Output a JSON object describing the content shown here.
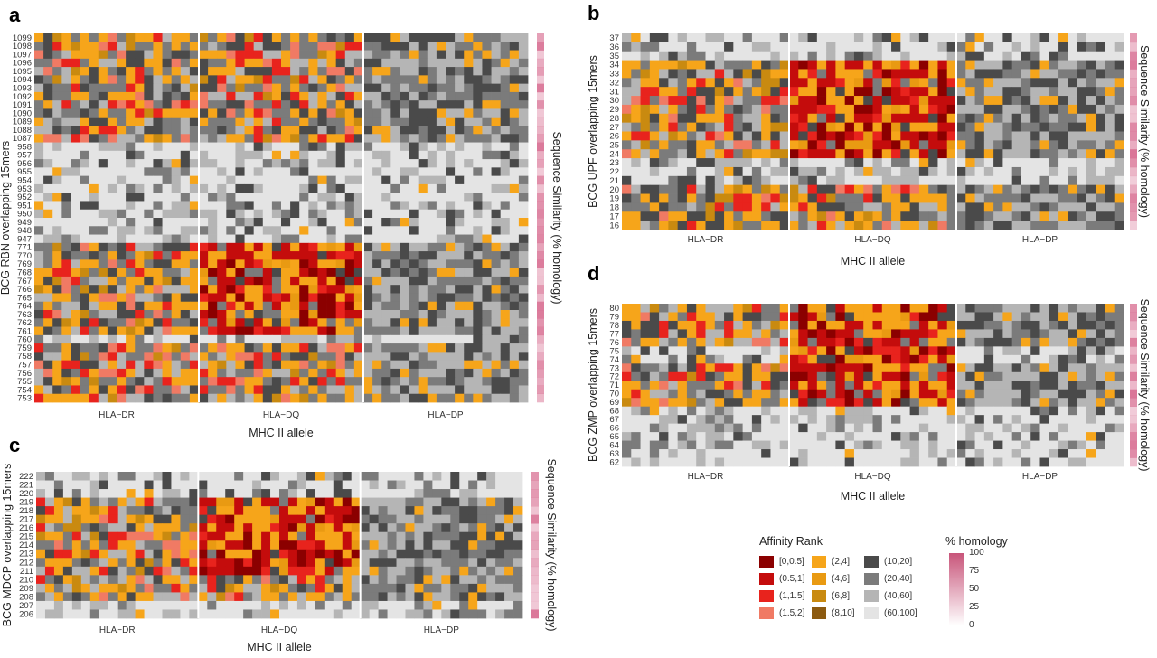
{
  "chart_data": [
    {
      "type": "heatmap",
      "panel": "a",
      "ylabel": "BCG RBN overlapping 15mers",
      "xlabel": "MHC II allele",
      "right_label": "Sequence Similarity (% homology)",
      "groups": [
        "HLA−DR",
        "HLA−DQ",
        "HLA−DP"
      ],
      "rows": [
        "1099",
        "1098",
        "1097",
        "1096",
        "1095",
        "1094",
        "1093",
        "1092",
        "1091",
        "1090",
        "1089",
        "1088",
        "1087",
        "958",
        "957",
        "956",
        "955",
        "954",
        "953",
        "952",
        "951",
        "950",
        "949",
        "948",
        "947",
        "771",
        "770",
        "769",
        "768",
        "767",
        "766",
        "765",
        "764",
        "763",
        "762",
        "761",
        "760",
        "759",
        "758",
        "757",
        "756",
        "755",
        "754",
        "753"
      ],
      "highlight_rows": [
        "1093",
        "952",
        "766",
        "759"
      ],
      "hot_bands": [
        [
          0,
          12
        ],
        [
          25,
          35
        ],
        [
          37,
          43
        ]
      ],
      "dq_hot_band": [
        25,
        35
      ]
    },
    {
      "type": "heatmap",
      "panel": "b",
      "ylabel": "BCG UPF overlapping 15mers",
      "xlabel": "MHC II allele",
      "right_label": "Sequence Similarity (% homology)",
      "groups": [
        "HLA−DR",
        "HLA−DQ",
        "HLA−DP"
      ],
      "rows": [
        "37",
        "36",
        "35",
        "34",
        "33",
        "32",
        "31",
        "30",
        "29",
        "28",
        "27",
        "26",
        "25",
        "24",
        "23",
        "22",
        "21",
        "20",
        "19",
        "18",
        "17",
        "16"
      ],
      "highlight_rows": [
        "28",
        "25"
      ],
      "hot_bands": [
        [
          3,
          13
        ],
        [
          17,
          21
        ]
      ],
      "dq_hot_band": [
        3,
        13
      ]
    },
    {
      "type": "heatmap",
      "panel": "c",
      "ylabel": "BCG MDCP overlapping 15mers",
      "xlabel": "MHC II allele",
      "right_label": "Sequence Similarity (% homology)",
      "groups": [
        "HLA−DR",
        "HLA−DQ",
        "HLA−DP"
      ],
      "rows": [
        "222",
        "221",
        "220",
        "219",
        "218",
        "217",
        "216",
        "215",
        "214",
        "213",
        "212",
        "211",
        "210",
        "209",
        "208",
        "207",
        "206"
      ],
      "highlight_rows": [
        "214"
      ],
      "hot_bands": [
        [
          3,
          14
        ]
      ],
      "dq_hot_band": [
        3,
        11
      ]
    },
    {
      "type": "heatmap",
      "panel": "d",
      "ylabel": "BCG ZMP overlapping 15mers",
      "xlabel": "MHC II allele",
      "right_label": "Sequence Similarity (% homology)",
      "groups": [
        "HLA−DR",
        "HLA−DQ",
        "HLA−DP"
      ],
      "rows": [
        "80",
        "79",
        "78",
        "77",
        "76",
        "75",
        "74",
        "73",
        "72",
        "71",
        "70",
        "69",
        "68",
        "67",
        "66",
        "65",
        "64",
        "63",
        "62"
      ],
      "highlight_rows": [
        "71"
      ],
      "hot_bands": [
        [
          0,
          4
        ],
        [
          7,
          11
        ]
      ],
      "dq_hot_band": [
        0,
        11
      ]
    }
  ],
  "legend": {
    "affinity_title": "Affinity Rank",
    "affinity_items": [
      {
        "label": "[0,0.5]",
        "color": "#8b0000"
      },
      {
        "label": "(0.5,1]",
        "color": "#c40c0c"
      },
      {
        "label": "(1,1.5]",
        "color": "#e8231d"
      },
      {
        "label": "(1.5,2]",
        "color": "#f07a64"
      },
      {
        "label": "(2,4]",
        "color": "#f6a51a"
      },
      {
        "label": "(4,6]",
        "color": "#e99a12"
      },
      {
        "label": "(6,8]",
        "color": "#c98a10"
      },
      {
        "label": "(8,10]",
        "color": "#8c5a10"
      },
      {
        "label": "(10,20]",
        "color": "#4a4a4a"
      },
      {
        "label": "(20,40]",
        "color": "#7b7b7b"
      },
      {
        "label": "(40,60]",
        "color": "#b5b5b5"
      },
      {
        "label": "(60,100]",
        "color": "#e4e4e4"
      }
    ],
    "homology_title": "% homology",
    "homology_ticks": [
      "100",
      "75",
      "50",
      "25",
      "0"
    ],
    "homology_color_high": "#c8557a",
    "homology_color_low": "#ffffff"
  },
  "colors": {
    "cell_palette": [
      "#8b0000",
      "#c40c0c",
      "#e8231d",
      "#f07a64",
      "#f6a51a",
      "#e99a12",
      "#c98a10",
      "#8c5a10",
      "#4a4a4a",
      "#7b7b7b",
      "#b5b5b5",
      "#e4e4e4"
    ],
    "highlight_text": "#e0202a",
    "side_bar": "#d86f92"
  }
}
